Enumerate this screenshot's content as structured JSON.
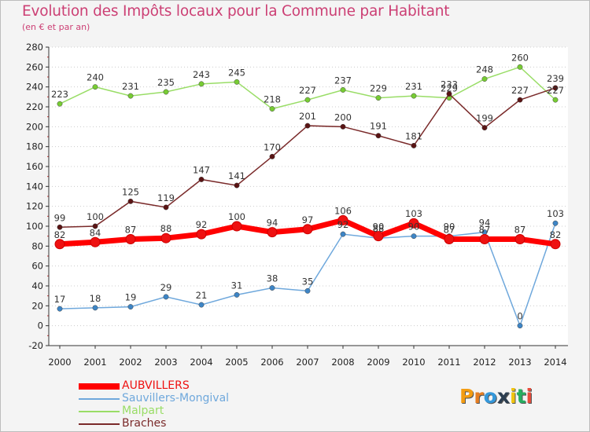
{
  "title": "Evolution des Impôts locaux pour la Commune par Habitant",
  "subtitle": "(en € et par an)",
  "chart_data": {
    "type": "line",
    "title": "Evolution des Impôts locaux pour la Commune par Habitant",
    "subtitle": "(en € et par an)",
    "xlabel": "",
    "ylabel": "",
    "ylim": [
      -20,
      280
    ],
    "ytick_step": 20,
    "grid": "horizontal dotted",
    "legend_position": "bottom-left",
    "categories": [
      "2000",
      "2001",
      "2002",
      "2003",
      "2004",
      "2005",
      "2006",
      "2007",
      "2008",
      "2009",
      "2010",
      "2011",
      "2012",
      "2013",
      "2014"
    ],
    "series": [
      {
        "name": "AUBVILLERS",
        "color": "#ff0000",
        "marker": "#ee1111",
        "bold": true,
        "values": [
          82,
          84,
          87,
          88,
          92,
          100,
          94,
          97,
          106,
          90,
          103,
          87,
          87,
          87,
          82
        ]
      },
      {
        "name": "Sauvillers-Mongival",
        "color": "#6fa8dc",
        "marker": "#3d85c6",
        "bold": false,
        "values": [
          17,
          18,
          19,
          29,
          21,
          31,
          38,
          35,
          92,
          88,
          90,
          90,
          94,
          0,
          103
        ]
      },
      {
        "name": "Malpart",
        "color": "#99dd66",
        "marker": "#77cc33",
        "bold": false,
        "values": [
          223,
          240,
          231,
          235,
          243,
          245,
          218,
          227,
          237,
          229,
          231,
          229,
          248,
          260,
          227
        ]
      },
      {
        "name": "Braches",
        "color": "#7a2a2a",
        "marker": "#5a1414",
        "bold": false,
        "values": [
          99,
          100,
          125,
          119,
          147,
          141,
          170,
          201,
          200,
          191,
          181,
          233,
          199,
          227,
          239
        ]
      }
    ]
  },
  "logo": {
    "letters": [
      "P",
      "r",
      "o",
      "x",
      "i",
      "t",
      "i"
    ],
    "colors": [
      "#f39c12",
      "#e67e22",
      "#3498db",
      "#2c3e50",
      "#f1c40f",
      "#27ae60",
      "#e74c3c"
    ]
  }
}
